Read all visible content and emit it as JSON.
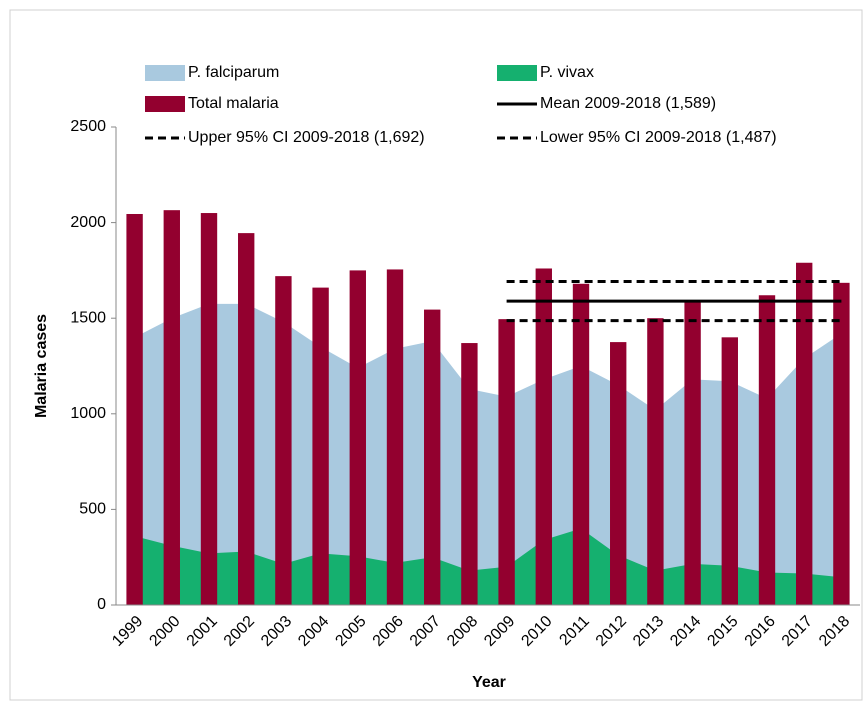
{
  "chart_data": {
    "type": "combo",
    "ylabel": "Malaria cases",
    "xlabel": "Year",
    "categories": [
      "1999",
      "2000",
      "2001",
      "2002",
      "2003",
      "2004",
      "2005",
      "2006",
      "2007",
      "2008",
      "2009",
      "2010",
      "2011",
      "2012",
      "2013",
      "2014",
      "2015",
      "2016",
      "2017",
      "2018"
    ],
    "series": [
      {
        "name": "P. falciparum",
        "type": "area",
        "color": "#a9c9df",
        "values": [
          1400,
          1500,
          1575,
          1575,
          1480,
          1350,
          1240,
          1340,
          1380,
          1130,
          1090,
          1180,
          1250,
          1150,
          1020,
          1180,
          1170,
          1080,
          1290,
          1420
        ]
      },
      {
        "name": "P. vivax",
        "type": "area",
        "color": "#15b06f",
        "values": [
          360,
          310,
          270,
          280,
          215,
          270,
          255,
          220,
          250,
          180,
          200,
          340,
          400,
          260,
          180,
          215,
          205,
          170,
          165,
          145
        ]
      },
      {
        "name": "Total malaria",
        "type": "bar",
        "color": "#93002f",
        "values": [
          2045,
          2065,
          2050,
          1945,
          1720,
          1660,
          1750,
          1755,
          1545,
          1370,
          1495,
          1760,
          1680,
          1375,
          1500,
          1590,
          1400,
          1620,
          1790,
          1685
        ]
      },
      {
        "name": "Mean 2009-2018 (1,589)",
        "type": "line",
        "style": "solid",
        "color": "#000000",
        "values": [
          null,
          null,
          null,
          null,
          null,
          null,
          null,
          null,
          null,
          null,
          1589,
          1589,
          1589,
          1589,
          1589,
          1589,
          1589,
          1589,
          1589,
          1589
        ]
      },
      {
        "name": "Upper 95% CI 2009-2018 (1,692)",
        "type": "line",
        "style": "dashed",
        "color": "#000000",
        "values": [
          null,
          null,
          null,
          null,
          null,
          null,
          null,
          null,
          null,
          null,
          1692,
          1692,
          1692,
          1692,
          1692,
          1692,
          1692,
          1692,
          1692,
          1692
        ]
      },
      {
        "name": "Lower 95% CI 2009-2018 (1,487)",
        "type": "line",
        "style": "dashed",
        "color": "#000000",
        "values": [
          null,
          null,
          null,
          null,
          null,
          null,
          null,
          null,
          null,
          null,
          1487,
          1487,
          1487,
          1487,
          1487,
          1487,
          1487,
          1487,
          1487,
          1487
        ]
      }
    ],
    "ylim": [
      0,
      2500
    ],
    "yticks": [
      0,
      500,
      1000,
      1500,
      2000,
      2500
    ],
    "grid": false
  }
}
